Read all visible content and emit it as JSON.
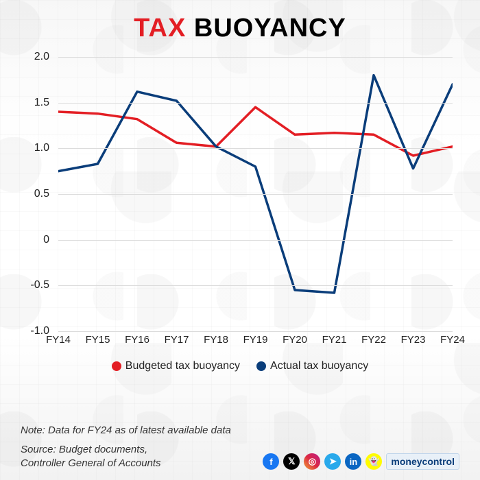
{
  "title": {
    "word1": "TAX",
    "word2": "BUOYANCY"
  },
  "chart": {
    "type": "line",
    "ylim": [
      -1.0,
      2.0
    ],
    "yticks": [
      -1.0,
      -0.5,
      0,
      0.5,
      1.0,
      1.5,
      2.0
    ],
    "ytick_labels": [
      "-1.0",
      "-0.5",
      "0",
      "0.5",
      "1.0",
      "1.5",
      "2.0"
    ],
    "categories": [
      "FY14",
      "FY15",
      "FY16",
      "FY17",
      "FY18",
      "FY19",
      "FY20",
      "FY21",
      "FY22",
      "FY23",
      "FY24"
    ],
    "series": [
      {
        "name": "Budgeted tax buoyancy",
        "color": "#e31e24",
        "line_width": 3.5,
        "values": [
          1.4,
          1.38,
          1.32,
          1.06,
          1.02,
          1.45,
          1.15,
          1.17,
          1.15,
          0.92,
          1.02
        ]
      },
      {
        "name": "Actual tax buoyancy",
        "color": "#0a3d7a",
        "line_width": 3.5,
        "values": [
          0.75,
          0.83,
          1.62,
          1.52,
          1.02,
          0.8,
          -0.55,
          -0.58,
          1.8,
          0.78,
          1.7
        ]
      }
    ],
    "grid_color": "#dcdcdc",
    "background_color": "#ffffff",
    "axis_fontsize": 16,
    "label_fontsize": 15
  },
  "legend": {
    "items": [
      {
        "label": "Budgeted tax buoyancy",
        "color": "#e31e24"
      },
      {
        "label": "Actual tax buoyancy",
        "color": "#0a3d7a"
      }
    ]
  },
  "note": "Note: Data for FY24 as of latest available data",
  "source_line1": "Source: Budget documents,",
  "source_line2": "Controller General of Accounts",
  "socials": [
    {
      "name": "facebook",
      "bg": "#1877f2",
      "glyph": "f"
    },
    {
      "name": "x",
      "bg": "#000000",
      "glyph": "𝕏"
    },
    {
      "name": "instagram",
      "bg": "linear-gradient(45deg,#f09433,#e6683c,#dc2743,#cc2366,#bc1888)",
      "glyph": "◎"
    },
    {
      "name": "telegram",
      "bg": "#29a9eb",
      "glyph": "➤"
    },
    {
      "name": "linkedin",
      "bg": "#0a66c2",
      "glyph": "in"
    },
    {
      "name": "snapchat",
      "bg": "#fffc00",
      "glyph": "👻"
    }
  ],
  "brand": "moneycontrol"
}
